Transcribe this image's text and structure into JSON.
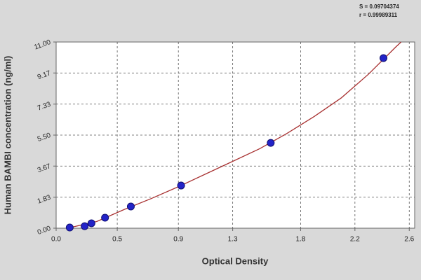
{
  "chart_data": {
    "type": "scatter",
    "annotations": [
      "S = 0.09704374",
      "r = 0.99989311"
    ],
    "x_label": "Optical Density",
    "y_label": "Human BAMBI concentration (ng/ml)",
    "x": [
      0.1,
      0.21,
      0.26,
      0.36,
      0.55,
      0.92,
      1.58,
      2.41
    ],
    "values": [
      0.04,
      0.12,
      0.29,
      0.62,
      1.28,
      2.52,
      5.04,
      10.05
    ],
    "color": "#2323c8",
    "curve": {
      "color": "#a83232",
      "x": [
        0.1,
        0.3,
        0.5,
        0.7,
        0.9,
        1.1,
        1.3,
        1.5,
        1.7,
        1.9,
        2.1,
        2.3,
        2.5,
        2.54
      ],
      "values": [
        0.03,
        0.4,
        1.1,
        1.75,
        2.45,
        3.2,
        3.95,
        4.7,
        5.6,
        6.6,
        7.7,
        9.1,
        10.7,
        11.0
      ]
    },
    "xlim": [
      0,
      2.64
    ],
    "ylim": [
      0,
      11
    ],
    "xticks": [
      {
        "value": 0,
        "label": "0.0"
      },
      {
        "value": 0.45,
        "label": "0.5"
      },
      0.9,
      1.3,
      1.8,
      2.2,
      2.6
    ],
    "yticks": [
      {
        "value": 0,
        "label": "0.00"
      },
      1.83,
      3.67,
      {
        "value": 5.5,
        "label": "5.50"
      },
      7.33,
      9.17,
      {
        "value": 11,
        "label": "11.00"
      }
    ],
    "grid": true
  }
}
